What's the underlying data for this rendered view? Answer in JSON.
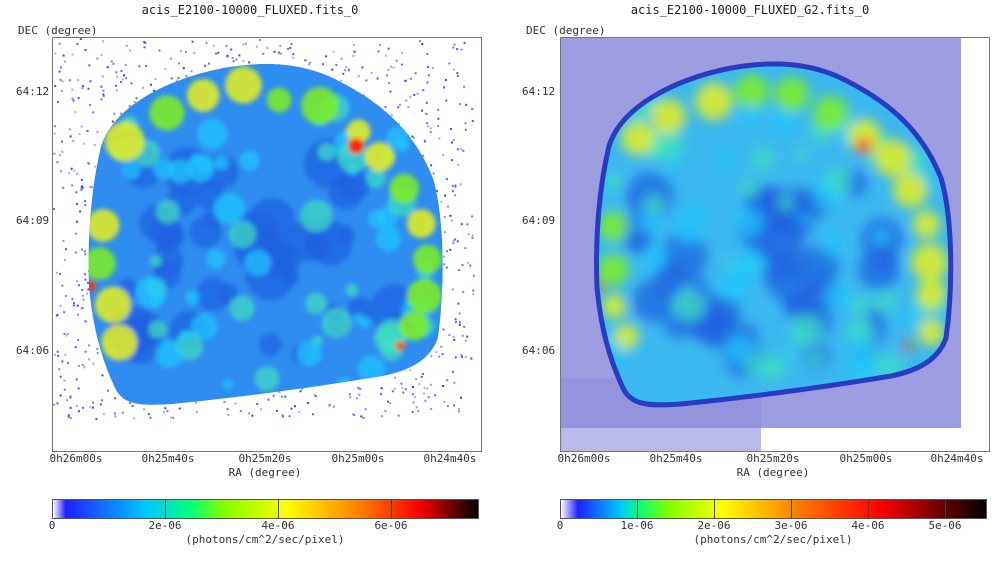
{
  "chart_data": [
    {
      "type": "heatmap",
      "title": "acis_E2100-10000_FLUXED.fits_0",
      "ylabel": "DEC (degree)",
      "xlabel": "RA (degree)",
      "y_ticks": [
        "64:12",
        "64:09",
        "64:06"
      ],
      "x_ticks": [
        "0h26m00s",
        "0h25m40s",
        "0h25m20s",
        "0h25m00s",
        "0h24m40s"
      ],
      "colorbar": {
        "ticks": [
          "0",
          "2e-06",
          "4e-06",
          "6e-06"
        ],
        "tick_values": [
          0,
          2e-06,
          4e-06,
          6e-06
        ],
        "range": [
          0,
          7.5e-06
        ],
        "units": "(photons/cm^2/sec/pixel)"
      },
      "smoothed": false
    },
    {
      "type": "heatmap",
      "title": "acis_E2100-10000_FLUXED_G2.fits_0",
      "ylabel": "DEC (degree)",
      "xlabel": "RA (degree)",
      "y_ticks": [
        "64:12",
        "64:09",
        "64:06"
      ],
      "x_ticks": [
        "0h26m00s",
        "0h25m40s",
        "0h25m20s",
        "0h25m00s",
        "0h24m40s"
      ],
      "colorbar": {
        "ticks": [
          "0",
          "1e-06",
          "2e-06",
          "3e-06",
          "4e-06",
          "5e-06"
        ],
        "tick_values": [
          0,
          1e-06,
          2e-06,
          3e-06,
          4e-06,
          5e-06
        ],
        "range": [
          0,
          5.5e-06
        ],
        "units": "(photons/cm^2/sec/pixel)"
      },
      "smoothed": true
    }
  ]
}
